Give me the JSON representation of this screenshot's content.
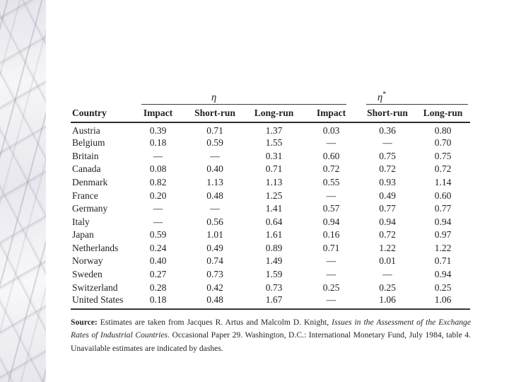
{
  "table": {
    "eta_label": "η",
    "eta_star_base": "η",
    "eta_star_sup": "*",
    "columns": [
      "Country",
      "Impact",
      "Short-run",
      "Long-run",
      "Impact",
      "Short-run",
      "Long-run"
    ],
    "rows": [
      {
        "country": "Austria",
        "values": [
          "0.39",
          "0.71",
          "1.37",
          "0.03",
          "0.36",
          "0.80"
        ]
      },
      {
        "country": "Belgium",
        "values": [
          "0.18",
          "0.59",
          "1.55",
          "—",
          "—",
          "0.70"
        ]
      },
      {
        "country": "Britain",
        "values": [
          "—",
          "—",
          "0.31",
          "0.60",
          "0.75",
          "0.75"
        ]
      },
      {
        "country": "Canada",
        "values": [
          "0.08",
          "0.40",
          "0.71",
          "0.72",
          "0.72",
          "0.72"
        ]
      },
      {
        "country": "Denmark",
        "values": [
          "0.82",
          "1.13",
          "1.13",
          "0.55",
          "0.93",
          "1.14"
        ]
      },
      {
        "country": "France",
        "values": [
          "0.20",
          "0.48",
          "1.25",
          "—",
          "0.49",
          "0.60"
        ]
      },
      {
        "country": "Germany",
        "values": [
          "—",
          "—",
          "1.41",
          "0.57",
          "0.77",
          "0.77"
        ]
      },
      {
        "country": "Italy",
        "values": [
          "—",
          "0.56",
          "0.64",
          "0.94",
          "0.94",
          "0.94"
        ]
      },
      {
        "country": "Japan",
        "values": [
          "0.59",
          "1.01",
          "1.61",
          "0.16",
          "0.72",
          "0.97"
        ]
      },
      {
        "country": "Netherlands",
        "values": [
          "0.24",
          "0.49",
          "0.89",
          "0.71",
          "1.22",
          "1.22"
        ]
      },
      {
        "country": "Norway",
        "values": [
          "0.40",
          "0.74",
          "1.49",
          "—",
          "0.01",
          "0.71"
        ]
      },
      {
        "country": "Sweden",
        "values": [
          "0.27",
          "0.73",
          "1.59",
          "—",
          "—",
          "0.94"
        ]
      },
      {
        "country": "Switzerland",
        "values": [
          "0.28",
          "0.42",
          "0.73",
          "0.25",
          "0.25",
          "0.25"
        ]
      },
      {
        "country": "United States",
        "values": [
          "0.18",
          "0.48",
          "1.67",
          "—",
          "1.06",
          "1.06"
        ]
      }
    ]
  },
  "source_note": {
    "label": "Source:",
    "segment1": " Estimates are taken from Jacques R. Artus and Malcolm D. Knight, ",
    "italic": "Issues in the Assessment of the Exchange Rates of Industrial Countries",
    "segment2": ". Occasional Paper 29. Washington, D.C.: International Monetary Fund, July 1984, table 4. Unavailable estimates are indicated by dashes."
  },
  "colors": {
    "text": "#1f1f1f",
    "rule": "#2d2d2d",
    "marble_base": "#eeeef2",
    "marble_vein": "#9a9aa6"
  }
}
